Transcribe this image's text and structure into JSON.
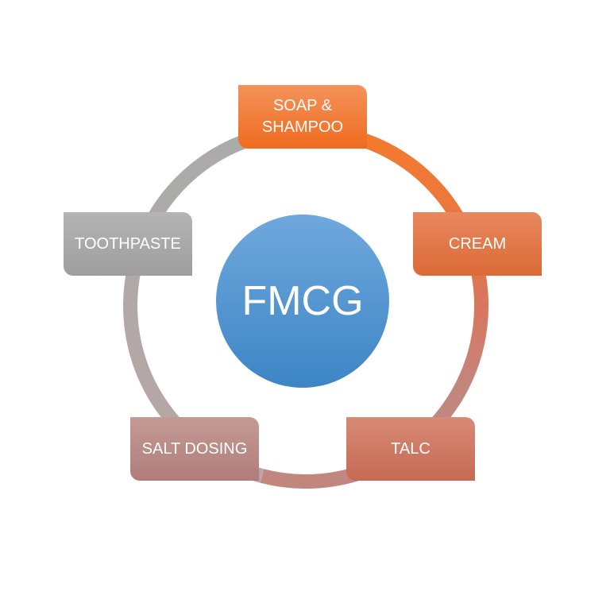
{
  "diagram": {
    "center": {
      "label": "FMCG",
      "color_top": "#6FA8DC",
      "color_bottom": "#3D85C6"
    },
    "nodes": [
      {
        "id": "soap",
        "label": "SOAP &\nSHAMPOO",
        "color_top": "#F5925A",
        "color_bottom": "#EE6B1E"
      },
      {
        "id": "cream",
        "label": "CREAM",
        "color_top": "#E8885E",
        "color_bottom": "#DB6A36"
      },
      {
        "id": "talc",
        "label": "TALC",
        "color_top": "#D88A76",
        "color_bottom": "#C56A55"
      },
      {
        "id": "salt",
        "label": "SALT DOSING",
        "color_top": "#C49A96",
        "color_bottom": "#B07D79"
      },
      {
        "id": "tooth",
        "label": "TOOTHPASTE",
        "color_top": "#B4B4B4",
        "color_bottom": "#9E9E9E"
      }
    ],
    "ring_colors": [
      "#F47A2C",
      "#EA7740",
      "#D9765E",
      "#C1877F",
      "#B8A6A4",
      "#ABABAB"
    ]
  }
}
